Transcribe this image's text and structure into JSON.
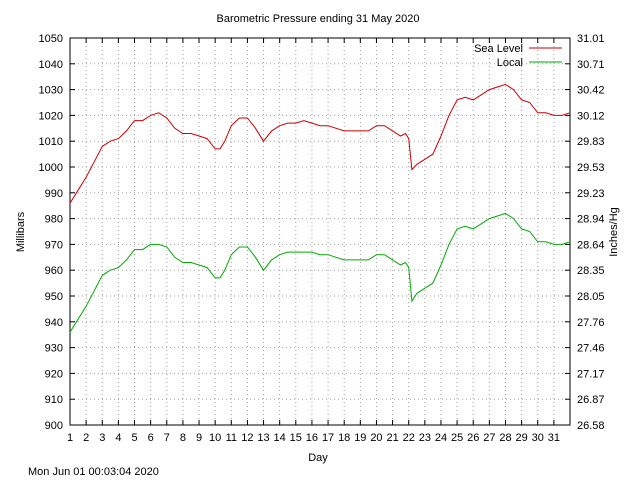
{
  "chart_data": {
    "type": "line",
    "title": "Barometric Pressure ending 31 May 2020",
    "xlabel": "Day",
    "ylabel": "Millibars",
    "y2label": "Inches/Hg",
    "xlim": [
      1,
      32
    ],
    "ylim": [
      900,
      1050
    ],
    "x_ticks": [
      "1",
      "2",
      "3",
      "4",
      "5",
      "6",
      "7",
      "8",
      "9",
      "10",
      "11",
      "12",
      "13",
      "14",
      "15",
      "16",
      "17",
      "18",
      "19",
      "20",
      "21",
      "22",
      "23",
      "24",
      "25",
      "26",
      "27",
      "28",
      "29",
      "30",
      "31"
    ],
    "y_ticks": [
      900,
      910,
      920,
      930,
      940,
      950,
      960,
      970,
      980,
      990,
      1000,
      1010,
      1020,
      1030,
      1040,
      1050
    ],
    "y2_ticks": [
      "26.58",
      "26.87",
      "27.17",
      "27.46",
      "27.76",
      "28.05",
      "28.35",
      "28.64",
      "28.94",
      "29.23",
      "29.53",
      "29.83",
      "30.12",
      "30.42",
      "30.71",
      "31.01"
    ],
    "grid": true,
    "legend_position": "top-right",
    "footer": "Mon Jun 01 00:03:04 2020",
    "series": [
      {
        "name": "Sea Level",
        "color": "#cc0000",
        "x": [
          1,
          1.5,
          2,
          2.5,
          3,
          3.5,
          4,
          4.5,
          5,
          5.5,
          6,
          6.5,
          7,
          7.5,
          8,
          8.5,
          9,
          9.5,
          10,
          10.3,
          10.6,
          11,
          11.5,
          12,
          12.5,
          13,
          13.5,
          14,
          14.5,
          15,
          15.5,
          16,
          16.5,
          17,
          17.5,
          18,
          18.5,
          19,
          19.5,
          20,
          20.5,
          21,
          21.5,
          21.8,
          22,
          22.2,
          22.5,
          23,
          23.5,
          24,
          24.5,
          25,
          25.5,
          26,
          26.5,
          27,
          27.5,
          28,
          28.5,
          29,
          29.5,
          30,
          30.5,
          31,
          31.5,
          32
        ],
        "values": [
          986,
          991,
          996,
          1002,
          1008,
          1010,
          1011,
          1014,
          1018,
          1018,
          1020,
          1021,
          1019,
          1015,
          1013,
          1013,
          1012,
          1011,
          1007,
          1007,
          1010,
          1016,
          1019,
          1019,
          1015,
          1010,
          1014,
          1016,
          1017,
          1017,
          1018,
          1017,
          1016,
          1016,
          1015,
          1014,
          1014,
          1014,
          1014,
          1016,
          1016,
          1014,
          1012,
          1013,
          1011,
          999,
          1001,
          1003,
          1005,
          1012,
          1020,
          1026,
          1027,
          1026,
          1028,
          1030,
          1031,
          1032,
          1030,
          1026,
          1025,
          1021,
          1021,
          1020,
          1020,
          1021
        ]
      },
      {
        "name": "Local",
        "color": "#00aa00",
        "x": [
          1,
          1.5,
          2,
          2.5,
          3,
          3.5,
          4,
          4.5,
          5,
          5.5,
          6,
          6.5,
          7,
          7.5,
          8,
          8.5,
          9,
          9.5,
          10,
          10.3,
          10.6,
          11,
          11.5,
          12,
          12.5,
          13,
          13.5,
          14,
          14.5,
          15,
          15.5,
          16,
          16.5,
          17,
          17.5,
          18,
          18.5,
          19,
          19.5,
          20,
          20.5,
          21,
          21.5,
          21.8,
          22,
          22.2,
          22.5,
          23,
          23.5,
          24,
          24.5,
          25,
          25.5,
          26,
          26.5,
          27,
          27.5,
          28,
          28.5,
          29,
          29.5,
          30,
          30.5,
          31,
          31.5,
          32
        ],
        "values": [
          936,
          941,
          946,
          952,
          958,
          960,
          961,
          964,
          968,
          968,
          970,
          970,
          969,
          965,
          963,
          963,
          962,
          961,
          957,
          957,
          960,
          966,
          969,
          969,
          965,
          960,
          964,
          966,
          967,
          967,
          967,
          967,
          966,
          966,
          965,
          964,
          964,
          964,
          964,
          966,
          966,
          964,
          962,
          963,
          961,
          948,
          951,
          953,
          955,
          962,
          970,
          976,
          977,
          976,
          978,
          980,
          981,
          982,
          980,
          976,
          975,
          971,
          971,
          970,
          970,
          971
        ]
      }
    ]
  }
}
